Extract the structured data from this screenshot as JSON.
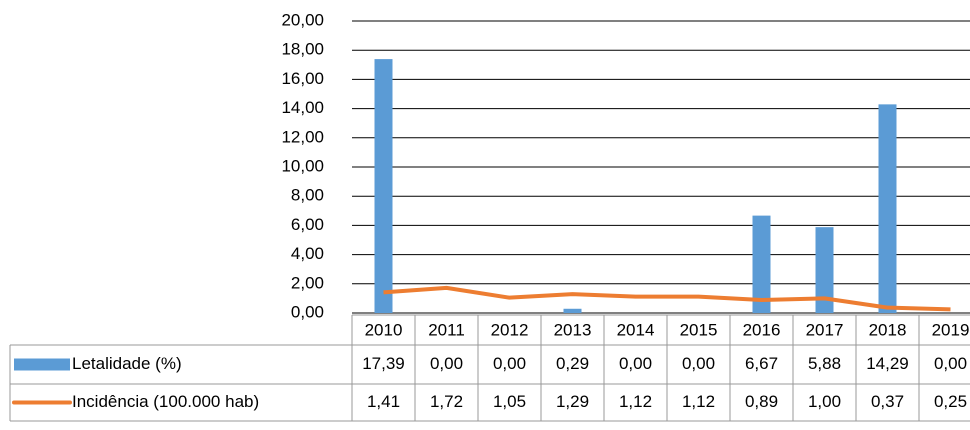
{
  "chart_data": {
    "type": "bar-line-table",
    "categories": [
      "2010",
      "2011",
      "2012",
      "2013",
      "2014",
      "2015",
      "2016",
      "2017",
      "2018",
      "2019"
    ],
    "series": [
      {
        "name": "Letalidade (%)",
        "type": "bar",
        "color": "#5b9bd5",
        "values": [
          17.39,
          0,
          0,
          0.29,
          0,
          0,
          6.67,
          5.88,
          14.29,
          0
        ],
        "value_labels": [
          "17,39",
          "0,00",
          "0,00",
          "0,29",
          "0,00",
          "0,00",
          "6,67",
          "5,88",
          "14,29",
          "0,00"
        ]
      },
      {
        "name": "Incidência (100.000 hab)",
        "type": "line",
        "color": "#ed7d31",
        "values": [
          1.41,
          1.72,
          1.05,
          1.29,
          1.12,
          1.12,
          0.89,
          1,
          0.37,
          0.25
        ],
        "value_labels": [
          "1,41",
          "1,72",
          "1,05",
          "1,29",
          "1,12",
          "1,12",
          "0,89",
          "1,00",
          "0,37",
          "0,25"
        ]
      }
    ],
    "ylim": [
      0,
      20
    ],
    "yticks": [
      {
        "value": 0,
        "label": "0,00"
      },
      {
        "value": 2,
        "label": "2,00"
      },
      {
        "value": 4,
        "label": "4,00"
      },
      {
        "value": 6,
        "label": "6,00"
      },
      {
        "value": 8,
        "label": "8,00"
      },
      {
        "value": 10,
        "label": "10,00"
      },
      {
        "value": 12,
        "label": "12,00"
      },
      {
        "value": 14,
        "label": "14,00"
      },
      {
        "value": 16,
        "label": "16,00"
      },
      {
        "value": 18,
        "label": "18,00"
      },
      {
        "value": 20,
        "label": "20,00"
      }
    ],
    "grid": true
  }
}
